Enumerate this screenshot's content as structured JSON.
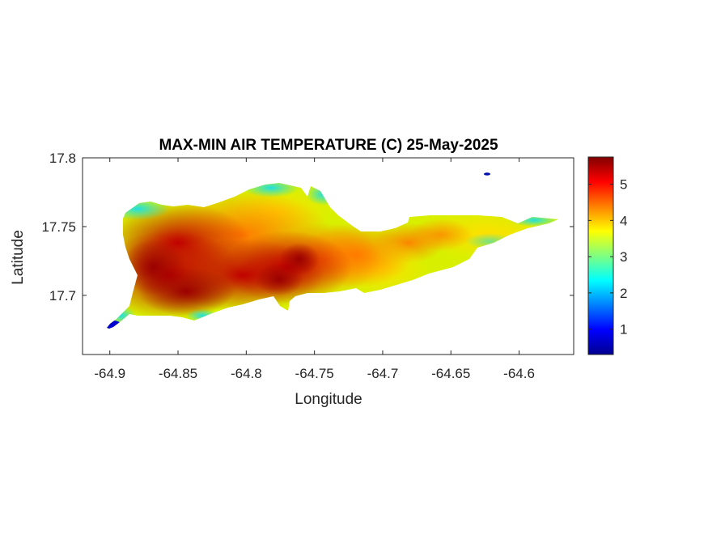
{
  "map": {
    "title": "MAX-MIN AIR TEMPERATURE (C) 25-May-2025",
    "x_label": "Longitude",
    "y_label": "Latitude",
    "x_ticks": [
      {
        "value": -64.9,
        "label": "-64.9"
      },
      {
        "value": -64.85,
        "label": "-64.85"
      },
      {
        "value": -64.8,
        "label": "-64.8"
      },
      {
        "value": -64.75,
        "label": "-64.75"
      },
      {
        "value": -64.7,
        "label": "-64.7"
      },
      {
        "value": -64.65,
        "label": "-64.65"
      },
      {
        "value": -64.6,
        "label": "-64.6"
      }
    ],
    "y_ticks": [
      {
        "value": 17.8,
        "label": "17.8"
      },
      {
        "value": 17.75,
        "label": "17.75"
      },
      {
        "value": 17.7,
        "label": "17.7"
      }
    ],
    "x_range": [
      -64.92,
      -64.56
    ],
    "y_range": [
      17.657,
      17.8
    ],
    "colorbar": {
      "colormap": "jet",
      "range": [
        0.3,
        5.75
      ],
      "ticks": [
        {
          "value": 1,
          "label": "1"
        },
        {
          "value": 2,
          "label": "2"
        },
        {
          "value": 3,
          "label": "3"
        },
        {
          "value": 4,
          "label": "4"
        },
        {
          "value": 5,
          "label": "5"
        }
      ]
    }
  }
}
